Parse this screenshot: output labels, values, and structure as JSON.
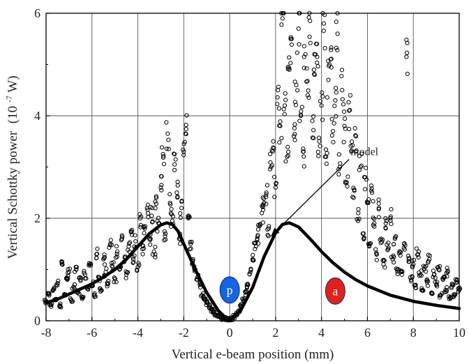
{
  "chart_data": {
    "type": "scatter",
    "xlabel": "Vertical e-beam position (mm)",
    "ylabel": "Vertical Schottky power",
    "ylabel_unit_prefix": "(10",
    "ylabel_unit_exp": "-7",
    "ylabel_unit_suffix": " W)",
    "xlim": [
      -8,
      10
    ],
    "ylim": [
      0,
      6
    ],
    "x_ticks": [
      -8,
      -6,
      -4,
      -2,
      0,
      2,
      4,
      6,
      8,
      10
    ],
    "y_ticks": [
      0,
      2,
      4,
      6
    ],
    "grid": true,
    "colors": {
      "marker": "#000000",
      "model": "#000000",
      "p_marker": "#1565e0",
      "a_marker": "#e0201a",
      "grid": "#555555"
    },
    "annotations": [
      {
        "text": "model",
        "arrow_to": [
          1.8,
          1.65
        ],
        "at": [
          5.2,
          3.15
        ]
      }
    ],
    "markers": [
      {
        "label": "p",
        "x": 0.0,
        "y": 0.6,
        "color": "#1565e0",
        "text_color": "#ffffff"
      },
      {
        "label": "a",
        "x": 4.6,
        "y": 0.58,
        "color": "#e0201a",
        "text_color": "#ffffff"
      }
    ],
    "series": [
      {
        "type": "line",
        "x": [
          -8,
          -7.5,
          -7,
          -6.5,
          -6,
          -5.5,
          -5,
          -4.5,
          -4,
          -3.5,
          -3,
          -2.75,
          -2.5,
          -2.25,
          -2,
          -1.5,
          -1,
          -0.5,
          -0.2,
          0,
          0.2,
          0.5,
          1,
          1.5,
          2,
          2.3,
          2.6,
          3,
          3.5,
          4,
          4.5,
          5,
          5.5,
          6,
          7,
          8,
          9,
          10
        ],
        "y": [
          0.35,
          0.42,
          0.52,
          0.62,
          0.72,
          0.85,
          1.0,
          1.2,
          1.45,
          1.7,
          1.87,
          1.91,
          1.88,
          1.75,
          1.5,
          1.0,
          0.55,
          0.2,
          0.07,
          0.04,
          0.08,
          0.22,
          0.65,
          1.25,
          1.72,
          1.88,
          1.91,
          1.83,
          1.6,
          1.35,
          1.13,
          0.95,
          0.8,
          0.68,
          0.5,
          0.38,
          0.3,
          0.24
        ]
      }
    ],
    "scatter": [
      [
        -8.0,
        0.37
      ],
      [
        -7.9,
        0.52
      ],
      [
        -7.8,
        0.31
      ],
      [
        -7.7,
        0.6
      ],
      [
        -7.6,
        0.42
      ],
      [
        -7.5,
        0.73
      ],
      [
        -7.4,
        0.3
      ],
      [
        -7.3,
        1.15
      ],
      [
        -7.2,
        0.5
      ],
      [
        -7.1,
        0.84
      ],
      [
        -7.0,
        0.95
      ],
      [
        -6.9,
        0.4
      ],
      [
        -6.8,
        0.66
      ],
      [
        -6.7,
        1.05
      ],
      [
        -6.6,
        0.55
      ],
      [
        -6.5,
        0.78
      ],
      [
        -6.4,
        0.45
      ],
      [
        -6.3,
        0.9
      ],
      [
        -6.2,
        0.62
      ],
      [
        -6.1,
        1.1
      ],
      [
        -6.0,
        0.7
      ],
      [
        -5.9,
        0.5
      ],
      [
        -5.8,
        1.3
      ],
      [
        -5.7,
        0.85
      ],
      [
        -5.6,
        0.6
      ],
      [
        -5.5,
        1.2
      ],
      [
        -5.4,
        0.95
      ],
      [
        -5.3,
        0.72
      ],
      [
        -5.2,
        1.5
      ],
      [
        -5.1,
        1.05
      ],
      [
        -5.0,
        0.82
      ],
      [
        -4.9,
        1.35
      ],
      [
        -4.8,
        1.0
      ],
      [
        -4.7,
        1.6
      ],
      [
        -4.6,
        1.15
      ],
      [
        -4.5,
        0.9
      ],
      [
        -4.4,
        1.45
      ],
      [
        -4.3,
        1.75
      ],
      [
        -4.2,
        1.2
      ],
      [
        -4.1,
        1.55
      ],
      [
        -4.0,
        1.05
      ],
      [
        -3.9,
        2.0
      ],
      [
        -3.8,
        1.4
      ],
      [
        -3.7,
        1.8
      ],
      [
        -3.6,
        2.2
      ],
      [
        -3.5,
        1.6
      ],
      [
        -3.4,
        2.05
      ],
      [
        -3.3,
        1.35
      ],
      [
        -3.2,
        2.4
      ],
      [
        -3.1,
        1.9
      ],
      [
        -3.0,
        2.6
      ],
      [
        -2.9,
        3.25
      ],
      [
        -2.8,
        1.7
      ],
      [
        -2.7,
        3.65
      ],
      [
        -2.6,
        2.3
      ],
      [
        -2.5,
        1.95
      ],
      [
        -2.4,
        3.05
      ],
      [
        -2.3,
        2.5
      ],
      [
        -2.2,
        1.6
      ],
      [
        -2.1,
        2.2
      ],
      [
        -2.0,
        3.3
      ],
      [
        -1.9,
        3.82
      ],
      [
        -1.8,
        2.0
      ],
      [
        -1.7,
        1.5
      ],
      [
        -1.6,
        1.2
      ],
      [
        -1.5,
        1.0
      ],
      [
        -1.4,
        0.85
      ],
      [
        -1.3,
        0.7
      ],
      [
        -1.2,
        0.5
      ],
      [
        -1.1,
        0.42
      ],
      [
        -1.0,
        0.35
      ],
      [
        -0.9,
        0.28
      ],
      [
        -0.8,
        0.22
      ],
      [
        -0.7,
        0.18
      ],
      [
        -0.6,
        0.12
      ],
      [
        -0.5,
        0.1
      ],
      [
        -0.4,
        0.06
      ],
      [
        -0.3,
        0.04
      ],
      [
        -0.2,
        0.05
      ],
      [
        -0.1,
        0.03
      ],
      [
        0.0,
        0.02
      ],
      [
        0.1,
        0.05
      ],
      [
        0.2,
        0.08
      ],
      [
        0.3,
        0.12
      ],
      [
        0.4,
        0.2
      ],
      [
        0.5,
        0.3
      ],
      [
        0.6,
        0.42
      ],
      [
        0.7,
        0.55
      ],
      [
        0.8,
        0.7
      ],
      [
        0.9,
        0.95
      ],
      [
        1.0,
        1.2
      ],
      [
        1.1,
        1.4
      ],
      [
        1.2,
        1.6
      ],
      [
        1.3,
        1.85
      ],
      [
        1.4,
        2.1
      ],
      [
        1.5,
        2.3
      ],
      [
        1.6,
        2.5
      ],
      [
        1.7,
        1.8
      ],
      [
        1.8,
        3.0
      ],
      [
        1.9,
        3.5
      ],
      [
        2.0,
        2.6
      ],
      [
        2.1,
        4.5
      ],
      [
        2.2,
        3.8
      ],
      [
        2.3,
        5.9
      ],
      [
        2.4,
        4.2
      ],
      [
        2.5,
        3.2
      ],
      [
        2.6,
        4.9
      ],
      [
        2.7,
        5.5
      ],
      [
        2.8,
        3.6
      ],
      [
        2.9,
        4.6
      ],
      [
        3.0,
        5.7
      ],
      [
        3.1,
        4.0
      ],
      [
        3.2,
        3.3
      ],
      [
        3.3,
        5.2
      ],
      [
        3.4,
        4.4
      ],
      [
        3.5,
        5.85
      ],
      [
        3.6,
        3.9
      ],
      [
        3.7,
        4.8
      ],
      [
        3.8,
        5.4
      ],
      [
        3.9,
        3.5
      ],
      [
        4.0,
        4.2
      ],
      [
        4.1,
        5.8
      ],
      [
        4.2,
        3.2
      ],
      [
        4.3,
        4.7
      ],
      [
        4.4,
        5.1
      ],
      [
        4.5,
        3.7
      ],
      [
        4.6,
        4.3
      ],
      [
        4.7,
        5.6
      ],
      [
        4.8,
        3.0
      ],
      [
        4.9,
        4.5
      ],
      [
        5.0,
        3.8
      ],
      [
        5.1,
        2.7
      ],
      [
        5.2,
        4.1
      ],
      [
        5.3,
        3.3
      ],
      [
        5.4,
        2.4
      ],
      [
        5.5,
        3.6
      ],
      [
        5.6,
        2.1
      ],
      [
        5.7,
        3.0
      ],
      [
        5.8,
        1.7
      ],
      [
        5.9,
        2.8
      ],
      [
        6.0,
        2.3
      ],
      [
        6.1,
        1.5
      ],
      [
        6.2,
        2.5
      ],
      [
        6.3,
        1.9
      ],
      [
        6.4,
        1.3
      ],
      [
        6.5,
        2.2
      ],
      [
        6.6,
        1.6
      ],
      [
        6.7,
        1.1
      ],
      [
        6.8,
        1.9
      ],
      [
        6.9,
        1.4
      ],
      [
        7.0,
        2.0
      ],
      [
        7.1,
        1.2
      ],
      [
        7.2,
        1.6
      ],
      [
        7.3,
        1.0
      ],
      [
        7.4,
        1.35
      ],
      [
        7.5,
        0.9
      ],
      [
        7.6,
        1.5
      ],
      [
        7.7,
        5.15
      ],
      [
        7.8,
        1.2
      ],
      [
        7.9,
        0.8
      ],
      [
        8.0,
        1.1
      ],
      [
        8.1,
        0.7
      ],
      [
        8.2,
        1.3
      ],
      [
        8.3,
        0.9
      ],
      [
        8.4,
        0.6
      ],
      [
        8.5,
        1.05
      ],
      [
        8.6,
        0.75
      ],
      [
        8.7,
        1.2
      ],
      [
        8.8,
        0.55
      ],
      [
        8.9,
        0.9
      ],
      [
        9.0,
        0.7
      ],
      [
        9.1,
        1.0
      ],
      [
        9.2,
        0.5
      ],
      [
        9.3,
        0.8
      ],
      [
        9.4,
        0.6
      ],
      [
        9.5,
        0.95
      ],
      [
        9.6,
        0.45
      ],
      [
        9.7,
        0.7
      ],
      [
        9.8,
        0.5
      ],
      [
        9.9,
        0.8
      ],
      [
        10.0,
        0.6
      ]
    ]
  }
}
